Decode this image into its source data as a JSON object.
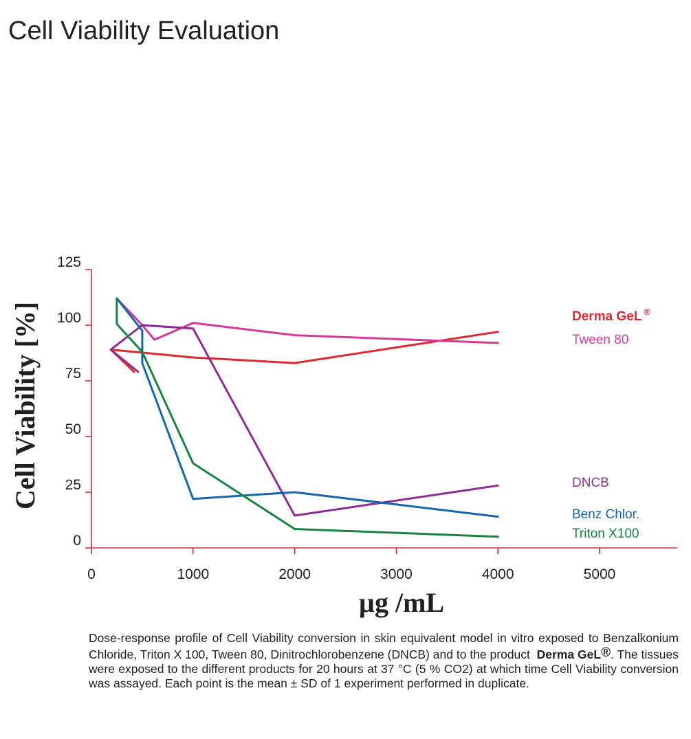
{
  "page_title": "Cell Viability Evaluation",
  "caption": {
    "part1": "Dose-response profile of Cell Viability conversion in skin equivalent model in vitro exposed to Benzalkonium Chloride, Triton X 100, Tween 80, Dinitrochlorobenzene (DNCB) and to the product",
    "brand": "Derma GeL",
    "reg": "®",
    "part2": ". The tissues were exposed to the different products for 20 hours at 37 °C  (5 %  CO2) at which time Cell Viability conversion was assayed. Each point is the mean ± SD of 1 experiment performed in duplicate."
  },
  "chart_data": {
    "type": "line",
    "xlabel": "µg /mL",
    "ylabel": "Cell Viability [%]",
    "xlim": [
      0,
      5700
    ],
    "ylim": [
      0,
      125
    ],
    "x_ticks": [
      0,
      1000,
      2000,
      3000,
      4000,
      5000
    ],
    "y_ticks": [
      0,
      25,
      50,
      75,
      100,
      125
    ],
    "axis_color": "#e0282e",
    "legend_placement": "right",
    "series": [
      {
        "name": "Derma GeL®",
        "legend_label": "Derma GeL",
        "legend_sup": "®",
        "legend_bold": true,
        "color": "#e0282e",
        "points": [
          [
            420,
            79
          ],
          [
            190,
            89
          ],
          [
            1000,
            85.5
          ],
          [
            2000,
            83
          ],
          [
            4000,
            97
          ]
        ]
      },
      {
        "name": "Tween 80",
        "legend_label": "Tween 80",
        "legend_sup": "",
        "legend_bold": false,
        "color": "#d6389a",
        "points": [
          [
            250,
            112
          ],
          [
            500,
            100
          ],
          [
            620,
            93.5
          ],
          [
            1000,
            101
          ],
          [
            2000,
            95.5
          ],
          [
            4000,
            92
          ]
        ]
      },
      {
        "name": "DNCB",
        "legend_label": "DNCB",
        "legend_sup": "",
        "legend_bold": false,
        "color": "#8e2c95",
        "points": [
          [
            460,
            79
          ],
          [
            190,
            89
          ],
          [
            500,
            100
          ],
          [
            1000,
            98.5
          ],
          [
            2000,
            14.5
          ],
          [
            4000,
            28
          ]
        ]
      },
      {
        "name": "Benz Chlor.",
        "legend_label": "Benz Chlor.",
        "legend_sup": "",
        "legend_bold": false,
        "color": "#1466ad",
        "points": [
          [
            250,
            112
          ],
          [
            500,
            97.5
          ],
          [
            500,
            83
          ],
          [
            1000,
            22
          ],
          [
            2000,
            25
          ],
          [
            4000,
            14
          ]
        ]
      },
      {
        "name": "Triton X100",
        "legend_label": "Triton X100",
        "legend_sup": "",
        "legend_bold": false,
        "color": "#15843f",
        "points": [
          [
            250,
            112
          ],
          [
            250,
            100.5
          ],
          [
            500,
            88
          ],
          [
            1000,
            38
          ],
          [
            2000,
            8.5
          ],
          [
            4000,
            5
          ]
        ]
      }
    ]
  }
}
